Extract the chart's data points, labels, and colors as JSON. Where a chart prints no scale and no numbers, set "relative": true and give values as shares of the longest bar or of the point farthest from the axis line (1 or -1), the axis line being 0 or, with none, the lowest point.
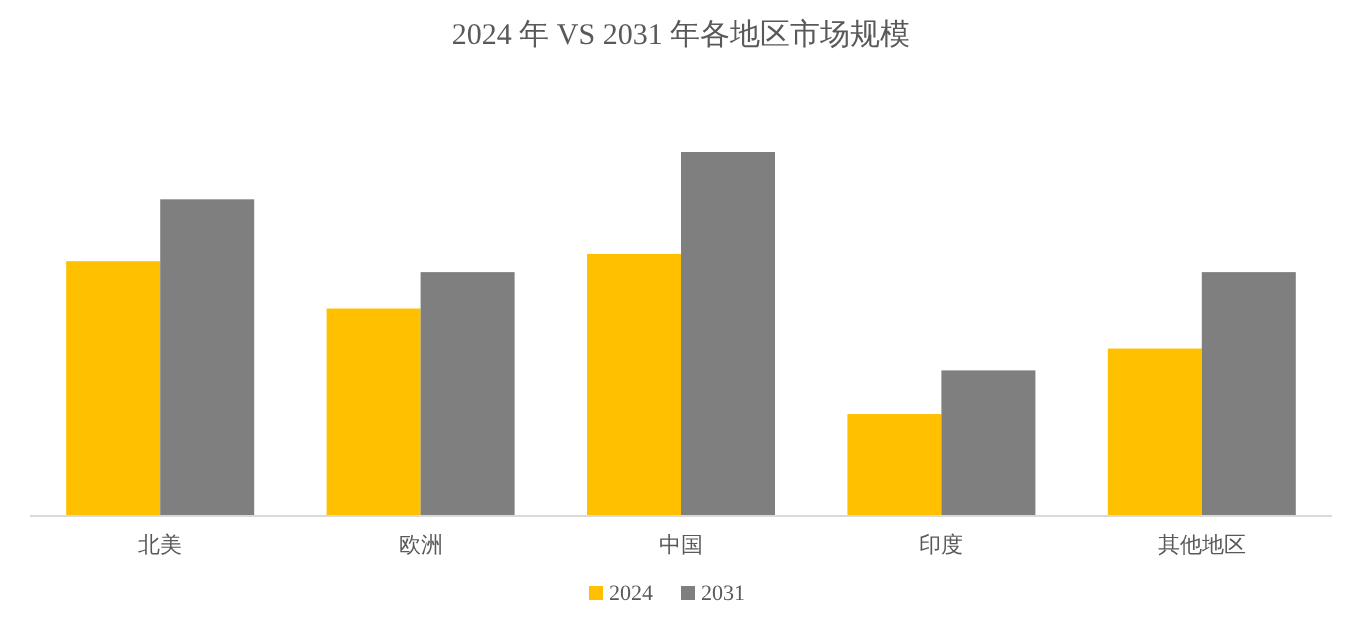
{
  "chart_data": {
    "type": "bar",
    "title": "2024 年 VS 2031 年各地区市场规模",
    "relative": true,
    "legend": "bottom",
    "categories": [
      "北美",
      "欧洲",
      "中国",
      "印度",
      "其他地区"
    ],
    "series": [
      {
        "name": "2024",
        "color": "#ffc000",
        "values": [
          0.7,
          0.57,
          0.72,
          0.28,
          0.46
        ]
      },
      {
        "name": "2031",
        "color": "#7f7f7f",
        "values": [
          0.87,
          0.67,
          1,
          0.4,
          0.67
        ]
      }
    ]
  }
}
